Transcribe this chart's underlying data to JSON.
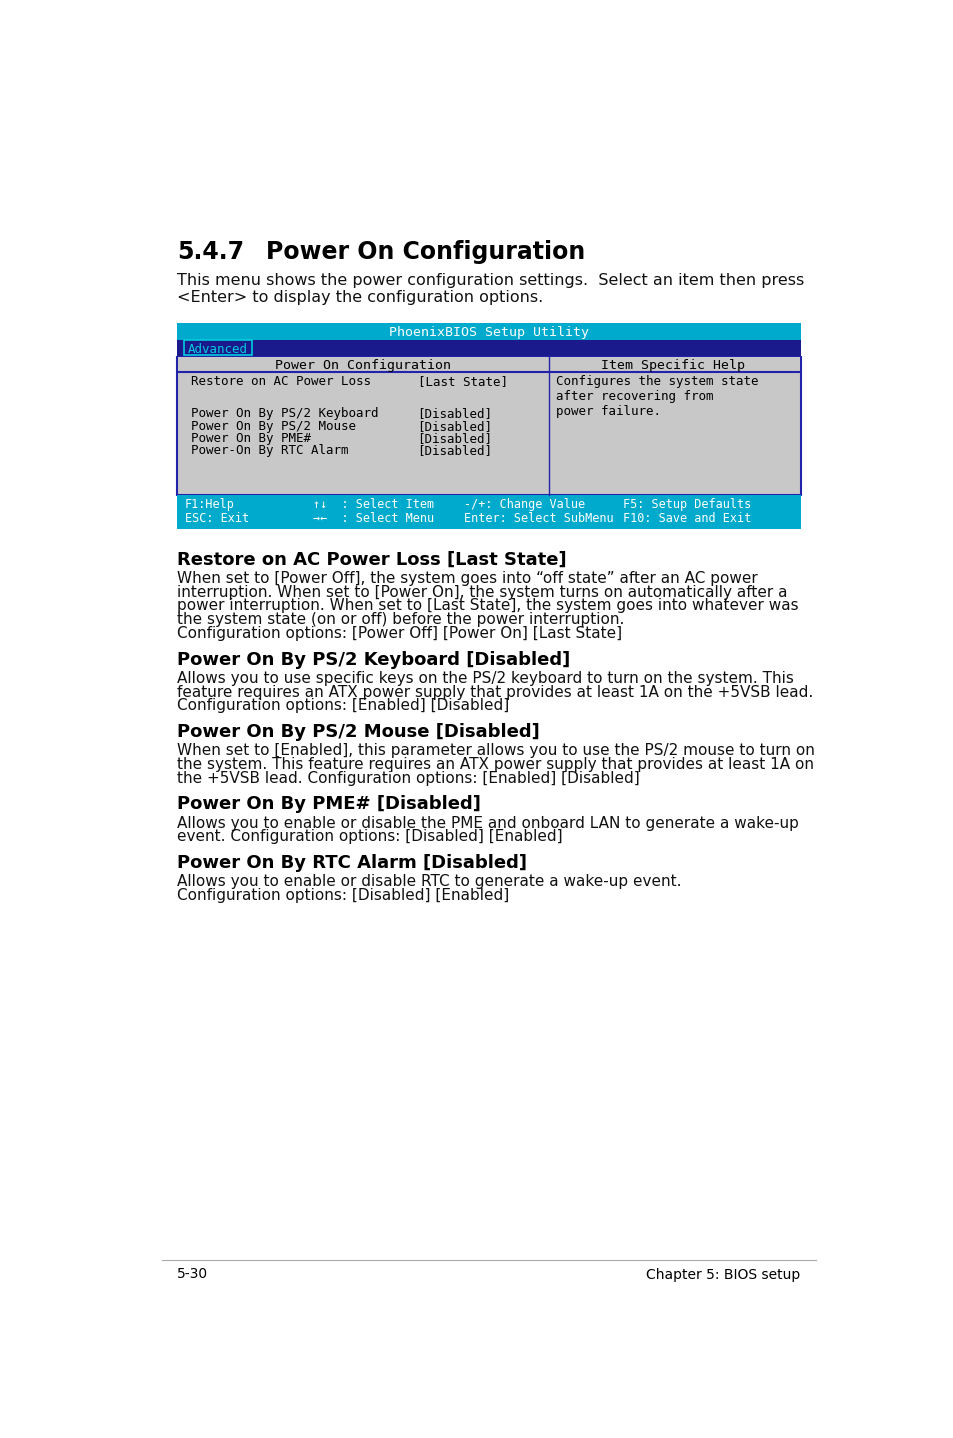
{
  "page_bg": "#ffffff",
  "section_number": "5.4.7",
  "section_title": "Power On Configuration",
  "intro_text": "This menu shows the power configuration settings.  Select an item then press\n<Enter> to display the configuration options.",
  "bios_title": "PhoenixBIOS Setup Utility",
  "bios_title_bg": "#00aacc",
  "bios_title_fg": "#ffffff",
  "menu_tab": "Advanced",
  "menu_tab_bg": "#0000aa",
  "menu_tab_fg": "#00ccdd",
  "content_area_bg": "#c8c8c8",
  "content_header_left": "Power On Configuration",
  "content_header_right": "Item Specific Help",
  "bios_items": [
    {
      "label": "Restore on AC Power Loss",
      "value": "[Last State]"
    },
    {
      "label": "",
      "value": ""
    },
    {
      "label": "Power On By PS/2 Keyboard",
      "value": "[Disabled]"
    },
    {
      "label": "Power On By PS/2 Mouse",
      "value": "[Disabled]"
    },
    {
      "label": "Power On By PME#",
      "value": "[Disabled]"
    },
    {
      "label": "Power-On By RTC Alarm",
      "value": "[Disabled]"
    }
  ],
  "help_text": "Configures the system state\nafter recovering from\npower failure.",
  "footer_bg": "#00aacc",
  "footer_left1": "F1:Help",
  "footer_left2": "ESC: Exit",
  "footer_mid1": "↑↓  : Select Item",
  "footer_mid2": "→←  : Select Menu",
  "footer_right1": "-/+: Change Value",
  "footer_right2": "Enter: Select SubMenu",
  "footer_far1": "F5: Setup Defaults",
  "footer_far2": "F10: Save and Exit",
  "sections": [
    {
      "heading": "Restore on AC Power Loss [Last State]",
      "body": "When set to [Power Off], the system goes into “off state” after an AC power\ninterruption. When set to [Power On], the system turns on automatically after a\npower interruption. When set to [Last State], the system goes into whatever was\nthe system state (on or off) before the power interruption.\nConfiguration options: [Power Off] [Power On] [Last State]"
    },
    {
      "heading": "Power On By PS/2 Keyboard [Disabled]",
      "body": "Allows you to use specific keys on the PS/2 keyboard to turn on the system. This\nfeature requires an ATX power supply that provides at least 1A on the +5VSB lead.\nConfiguration options: [Enabled] [Disabled]"
    },
    {
      "heading": "Power On By PS/2 Mouse [Disabled]",
      "body": "When set to [Enabled], this parameter allows you to use the PS/2 mouse to turn on\nthe system. This feature requires an ATX power supply that provides at least 1A on\nthe +5VSB lead. Configuration options: [Enabled] [Disabled]"
    },
    {
      "heading": "Power On By PME# [Disabled]",
      "body": "Allows you to enable or disable the PME and onboard LAN to generate a wake-up\nevent. Configuration options: [Disabled] [Enabled]"
    },
    {
      "heading": "Power On By RTC Alarm [Disabled]",
      "body": "Allows you to enable or disable RTC to generate a wake-up event.\nConfiguration options: [Disabled] [Enabled]"
    }
  ],
  "footer_page_left": "5-30",
  "footer_page_right": "Chapter 5: BIOS setup",
  "monospace_font": "DejaVu Sans Mono",
  "body_font": "DejaVu Sans"
}
